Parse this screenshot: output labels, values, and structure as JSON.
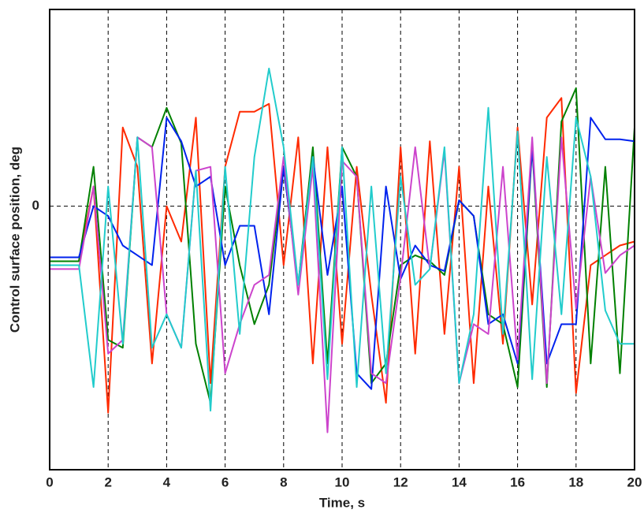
{
  "chart_data": {
    "type": "line",
    "x_label": "Time, s",
    "y_label": "Control surface position, deg",
    "x": [
      0,
      0.5,
      1,
      1.5,
      2,
      2.5,
      3,
      3.5,
      4,
      4.5,
      5,
      5.5,
      6,
      6.5,
      7,
      7.5,
      8,
      8.5,
      9,
      9.5,
      10,
      10.5,
      11,
      11.5,
      12,
      12.5,
      13,
      13.5,
      14,
      14.5,
      15,
      15.5,
      16,
      16.5,
      17,
      17.5,
      18,
      18.5,
      19,
      19.5,
      20
    ],
    "series": [
      {
        "color": "#ff2a00",
        "values": [
          -2.8,
          -2.8,
          -2.8,
          1,
          -10.5,
          4,
          2,
          -8,
          0,
          -1.8,
          4.5,
          -9,
          2,
          4.8,
          4.8,
          5.2,
          -3,
          3.5,
          -8,
          3,
          -7,
          2,
          -4.5,
          -10,
          3,
          -7.5,
          3.3,
          -6.5,
          2,
          -9,
          1,
          -7,
          4,
          -5,
          4.5,
          5.5,
          -9.5,
          -3,
          -2.5,
          -2,
          -1.8
        ]
      },
      {
        "color": "#008000",
        "values": [
          -2.8,
          -2.8,
          -2.8,
          2,
          -6.8,
          -7.2,
          3.5,
          3,
          5,
          3.2,
          -7,
          -10,
          1,
          -3,
          -6,
          -4,
          2,
          -4,
          3,
          -8,
          3,
          1.5,
          -9,
          -8,
          -3,
          -2.5,
          -2.8,
          -3.5,
          0.3,
          -0.5,
          -5.5,
          -6,
          -9.2,
          3,
          -9.2,
          4.3,
          6,
          -8,
          2,
          -8.5,
          4
        ]
      },
      {
        "color": "#0022ee",
        "values": [
          -2.6,
          -2.6,
          -2.6,
          0,
          -0.5,
          -2,
          -2.5,
          -3,
          4.5,
          3.3,
          1,
          1.5,
          -3,
          -1,
          -1,
          -5.5,
          2,
          -4,
          2.5,
          -3.5,
          1,
          -8.5,
          -9.3,
          1,
          -3.7,
          -2,
          -3,
          -3.3,
          0.3,
          -0.5,
          -6,
          -5.5,
          -8,
          3,
          -8,
          -6,
          -6,
          4.5,
          3.4,
          3.4,
          3.3
        ]
      },
      {
        "color": "#cc44cc",
        "values": [
          -3.2,
          -3.2,
          -3.2,
          1,
          -7.5,
          -6.8,
          3.5,
          3,
          -5.5,
          -7.2,
          1.8,
          2,
          -8.5,
          -6,
          -4,
          -3.5,
          2.5,
          -4.5,
          2,
          -11.5,
          2.3,
          1.5,
          -8.5,
          -9,
          -3.6,
          3,
          -3.2,
          2.8,
          -9,
          -6,
          -6.5,
          2,
          -7.8,
          3.5,
          -9,
          3.5,
          -5.2,
          1.5,
          -3.4,
          -2.5,
          -2
        ]
      },
      {
        "color": "#22cccc",
        "values": [
          -3,
          -3,
          -3,
          -9.2,
          1,
          -7,
          3.5,
          -7.2,
          -5.5,
          -7.2,
          1.8,
          -10.4,
          2,
          -6.5,
          2.5,
          7,
          3,
          -4,
          2.5,
          -8.8,
          3,
          -9.2,
          1,
          -8.5,
          1.5,
          -4,
          -3.2,
          3,
          -9,
          -5.5,
          5,
          -6.5,
          3.8,
          -8.8,
          2.5,
          -5.5,
          4.5,
          1.5,
          -5.3,
          -7,
          -7
        ]
      }
    ],
    "xlim": [
      0,
      20
    ],
    "xticks": [
      0,
      2,
      4,
      6,
      8,
      10,
      12,
      14,
      16,
      18,
      20
    ],
    "ylim": [
      -13.4,
      10
    ],
    "yticks": [
      0
    ],
    "grid": true
  }
}
